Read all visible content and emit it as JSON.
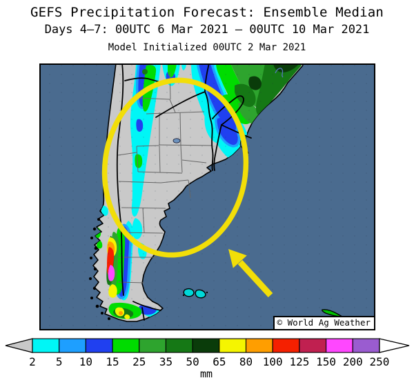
{
  "header": {
    "title": "GEFS Precipitation Forecast: Ensemble Median",
    "subtitle": "Days 4–7: 00UTC 6 Mar 2021 – 00UTC 10 Mar 2021",
    "initialized": "Model Initialized 00UTC 2 Mar 2021"
  },
  "map": {
    "attribution": "© World Ag Weather",
    "ocean_color": "#4A6B8F",
    "land_color": "#C9C9C9",
    "annotation_color": "#F2DE08",
    "annotations": [
      "highlight-ellipse-over-central-argentina",
      "arrow-pointing-northwest-at-ellipse"
    ]
  },
  "legend": {
    "unit": "mm",
    "ticks": [
      "2",
      "5",
      "10",
      "15",
      "25",
      "35",
      "50",
      "65",
      "80",
      "100",
      "125",
      "150",
      "200",
      "250"
    ],
    "colors": [
      "#00F6F6",
      "#1E9FFF",
      "#2040F0",
      "#00DC00",
      "#2EA42E",
      "#157815",
      "#0A3C0A",
      "#F5F500",
      "#FF9E00",
      "#F52000",
      "#C02050",
      "#FF47FF",
      "#9A5CD0"
    ],
    "underflow_color": "#C8C8C8",
    "overflow_color": "#FFFFFF"
  }
}
